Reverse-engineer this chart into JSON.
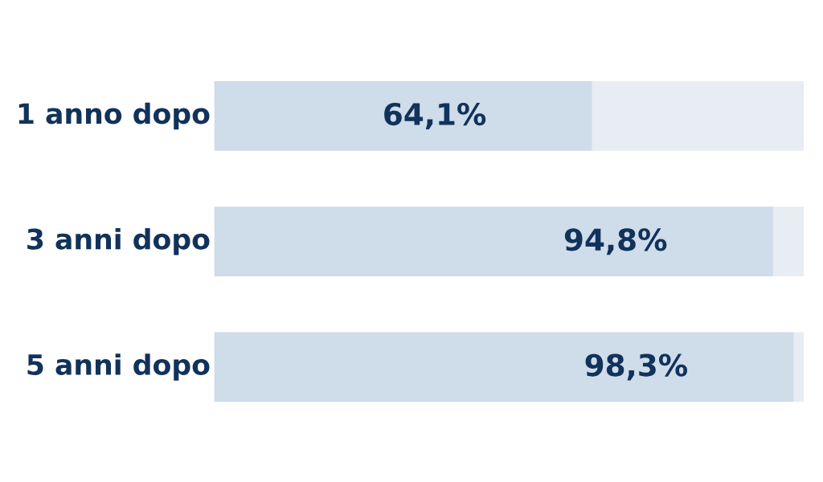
{
  "chart_data": {
    "type": "bar",
    "orientation": "horizontal",
    "stacked": true,
    "categories": [
      "1 anno dopo",
      "3 anni dopo",
      "5 anni dopo"
    ],
    "xlim": [
      0,
      100
    ],
    "series": [
      {
        "color": "#cfdce9",
        "values": [
          64.1,
          94.8,
          98.3
        ],
        "value_labels": [
          "64,1%",
          "94,8%",
          "98,3%"
        ]
      },
      {
        "color": "#e8edf3",
        "values": [
          35.9,
          5.2,
          1.7
        ]
      }
    ]
  }
}
